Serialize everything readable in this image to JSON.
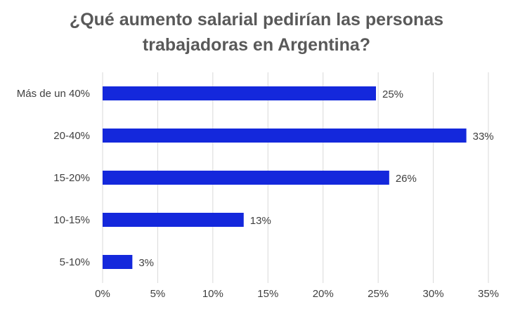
{
  "chart_data": {
    "type": "bar",
    "orientation": "horizontal",
    "title_lines": [
      "¿Qué aumento salarial pedirían las personas",
      "trabajadoras en Argentina?"
    ],
    "categories": [
      "Más de un 40%",
      "20-40%",
      "15-20%",
      "10-15%",
      "5-10%"
    ],
    "values": [
      24.8,
      33.0,
      26.0,
      12.8,
      2.7
    ],
    "data_labels": [
      "25%",
      "33%",
      "26%",
      "13%",
      "3%"
    ],
    "xlim": [
      0,
      35
    ],
    "xticks": [
      0,
      5,
      10,
      15,
      20,
      25,
      30,
      35
    ],
    "xtick_labels": [
      "0%",
      "5%",
      "10%",
      "15%",
      "20%",
      "25%",
      "30%",
      "35%"
    ],
    "xlabel": "",
    "ylabel": "",
    "grid": true,
    "legend": "none",
    "colors": {
      "bar": "#1428DC",
      "grid": "#D9D9D9",
      "text": "#404040",
      "title": "#595959"
    }
  }
}
